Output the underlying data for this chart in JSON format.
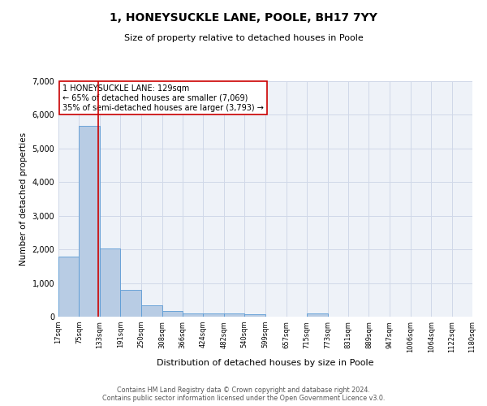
{
  "title": "1, HONEYSUCKLE LANE, POOLE, BH17 7YY",
  "subtitle": "Size of property relative to detached houses in Poole",
  "xlabel": "Distribution of detached houses by size in Poole",
  "ylabel": "Number of detached properties",
  "footer_line1": "Contains HM Land Registry data © Crown copyright and database right 2024.",
  "footer_line2": "Contains public sector information licensed under the Open Government Licence v3.0.",
  "bar_color": "#b8cce4",
  "bar_edge_color": "#5b9bd5",
  "grid_color": "#d0d8e8",
  "background_color": "#eef2f8",
  "annotation_box_color": "#cc0000",
  "property_line_color": "#cc0000",
  "property_size": 129,
  "annotation_text": "1 HONEYSUCKLE LANE: 129sqm\n← 65% of detached houses are smaller (7,069)\n35% of semi-detached houses are larger (3,793) →",
  "bin_edges": [
    17,
    75,
    133,
    191,
    250,
    308,
    366,
    424,
    482,
    540,
    599,
    657,
    715,
    773,
    831,
    889,
    947,
    1006,
    1064,
    1122,
    1180
  ],
  "bar_heights": [
    1780,
    5680,
    2020,
    800,
    340,
    175,
    100,
    85,
    85,
    70,
    0,
    0,
    105,
    0,
    0,
    0,
    0,
    0,
    0,
    0
  ],
  "ylim": [
    0,
    7000
  ],
  "yticks": [
    0,
    1000,
    2000,
    3000,
    4000,
    5000,
    6000,
    7000
  ]
}
